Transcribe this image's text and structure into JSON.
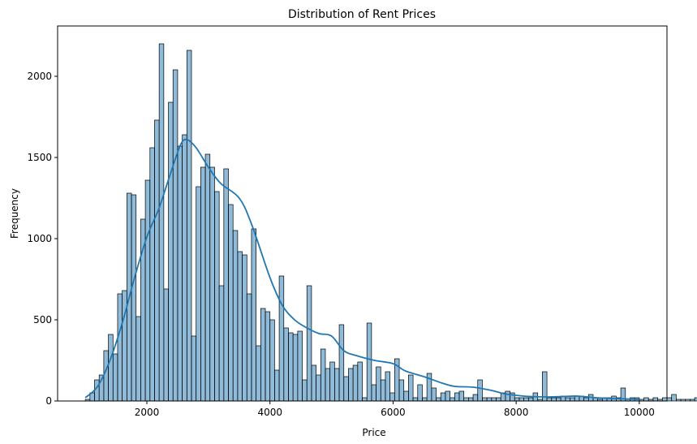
{
  "chart_data": {
    "type": "bar",
    "title": "Distribution of Rent Prices",
    "xlabel": "Price",
    "ylabel": "Frequency",
    "xlim": [
      550,
      10450
    ],
    "ylim": [
      0,
      2310
    ],
    "xticks": [
      2000,
      4000,
      6000,
      8000,
      10000
    ],
    "yticks": [
      0,
      500,
      1000,
      1500,
      2000
    ],
    "grid": false,
    "bar_color": "#1f77b4",
    "bar_fill_opacity": 0.5,
    "bar_edge_color": "#000000",
    "kde_color": "#1f77b4",
    "bin_start": 1000,
    "bin_width": 75,
    "counts": [
      10,
      50,
      130,
      160,
      310,
      410,
      290,
      660,
      680,
      1280,
      1270,
      520,
      1120,
      1360,
      1560,
      1730,
      2200,
      690,
      1840,
      2040,
      1570,
      1640,
      2160,
      400,
      1320,
      1440,
      1520,
      1440,
      1290,
      710,
      1430,
      1210,
      1050,
      920,
      900,
      660,
      1060,
      340,
      570,
      550,
      500,
      190,
      770,
      450,
      420,
      410,
      430,
      130,
      710,
      220,
      160,
      320,
      200,
      240,
      200,
      470,
      150,
      200,
      220,
      240,
      20,
      480,
      100,
      210,
      130,
      180,
      50,
      260,
      130,
      60,
      160,
      20,
      100,
      20,
      170,
      80,
      20,
      50,
      60,
      20,
      50,
      60,
      20,
      20,
      40,
      130,
      20,
      20,
      20,
      20,
      50,
      60,
      50,
      20,
      20,
      20,
      20,
      50,
      10,
      180,
      20,
      20,
      20,
      30,
      20,
      20,
      30,
      30,
      20,
      40,
      20,
      10,
      20,
      20,
      30,
      20,
      80,
      10,
      20,
      20,
      10,
      20,
      10,
      20,
      10,
      20,
      20,
      40,
      10,
      10,
      10,
      10,
      20
    ],
    "kde": {
      "x": [
        1000,
        1200,
        1400,
        1600,
        1800,
        2000,
        2200,
        2400,
        2550,
        2650,
        2800,
        3000,
        3200,
        3500,
        3700,
        4000,
        4200,
        4400,
        4600,
        4800,
        5000,
        5200,
        5400,
        5700,
        6000,
        6200,
        6500,
        6800,
        7000,
        7300,
        7600,
        7800,
        8000,
        8200,
        8500,
        8800,
        9000,
        9300,
        9600,
        10000
      ],
      "y": [
        20,
        90,
        250,
        480,
        760,
        1010,
        1190,
        1420,
        1580,
        1610,
        1560,
        1440,
        1340,
        1250,
        1090,
        760,
        590,
        500,
        450,
        415,
        400,
        310,
        280,
        250,
        230,
        185,
        150,
        110,
        90,
        85,
        65,
        45,
        35,
        28,
        25,
        28,
        30,
        20,
        15,
        10
      ]
    }
  }
}
